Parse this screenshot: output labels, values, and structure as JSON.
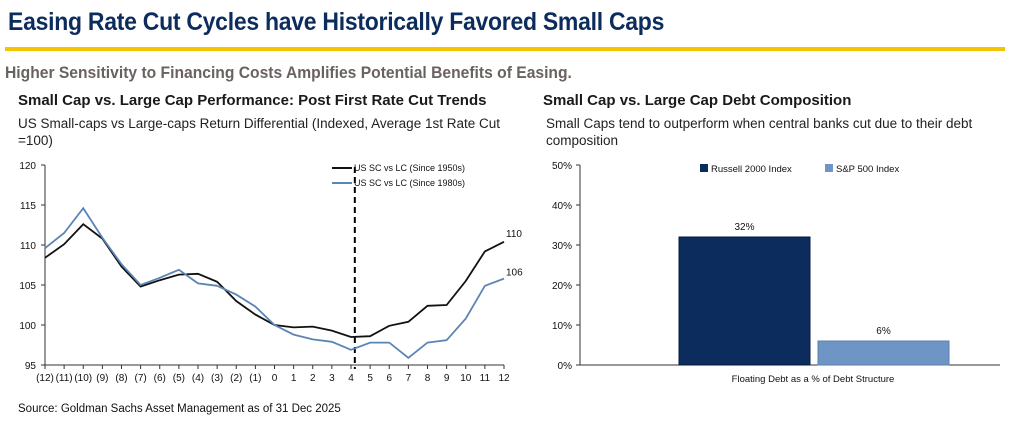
{
  "header": {
    "title": "Easing Rate Cut Cycles have Historically Favored Small Caps",
    "subtitle": "Higher Sensitivity to Financing Costs Amplifies Potential Benefits of Easing."
  },
  "colors": {
    "accent_rule": "#f5c400",
    "title": "#0d2c5e",
    "series_1950": "#111111",
    "series_1980": "#5b85b5",
    "russell": "#0d2c5e",
    "sp500": "#6f95c4"
  },
  "footer": {
    "source": "Source: Goldman Sachs Asset Management as of 31 Dec 2025"
  },
  "chart_data": [
    {
      "type": "line",
      "title": "Small Cap vs. Large Cap Performance: Post First Rate Cut Trends",
      "subtitle": "US Small-caps vs Large-caps Return Differential (Indexed, Average 1st Rate Cut =100)",
      "x": [
        "(12)",
        "(11)",
        "(10)",
        "(9)",
        "(8)",
        "(7)",
        "(6)",
        "(5)",
        "(4)",
        "(3)",
        "(2)",
        "(1)",
        "0",
        "1",
        "2",
        "3",
        "4",
        "5",
        "6",
        "7",
        "8",
        "9",
        "10",
        "11",
        "12"
      ],
      "ylim": [
        95,
        120
      ],
      "yticks": [
        "95",
        "100",
        "105",
        "110",
        "115",
        "120"
      ],
      "vline_x": 4.2,
      "legend": "top-right",
      "series": [
        {
          "name": "US SC vs LC (Since 1950s)",
          "end_label": "110",
          "values": [
            108.4,
            110.1,
            112.6,
            110.8,
            107.3,
            104.8,
            105.6,
            106.3,
            106.4,
            105.4,
            103.0,
            101.3,
            100.0,
            99.7,
            99.8,
            99.3,
            98.5,
            98.6,
            99.9,
            100.4,
            102.4,
            102.5,
            105.5,
            109.2,
            110.4
          ]
        },
        {
          "name": "US SC vs LC (Since 1980s)",
          "end_label": "106",
          "values": [
            109.6,
            111.5,
            114.6,
            110.9,
            107.6,
            105.0,
            105.9,
            106.9,
            105.2,
            104.9,
            103.8,
            102.3,
            100.0,
            98.8,
            98.2,
            97.9,
            96.9,
            97.8,
            97.8,
            95.9,
            97.8,
            98.1,
            100.8,
            104.9,
            105.8
          ]
        }
      ]
    },
    {
      "type": "bar",
      "title": "Small Cap vs. Large Cap Debt Composition",
      "subtitle": "Small Caps tend to outperform when central banks cut due to their debt composition",
      "categories": [
        "Floating Debt as a % of Debt Structure"
      ],
      "ylim": [
        0,
        50
      ],
      "yticks": [
        "0%",
        "10%",
        "20%",
        "30%",
        "40%",
        "50%"
      ],
      "legend": "top",
      "series": [
        {
          "name": "Russell 2000 Index",
          "values": [
            32
          ],
          "label": "32%"
        },
        {
          "name": "S&P 500 Index",
          "values": [
            6
          ],
          "label": "6%"
        }
      ]
    }
  ]
}
